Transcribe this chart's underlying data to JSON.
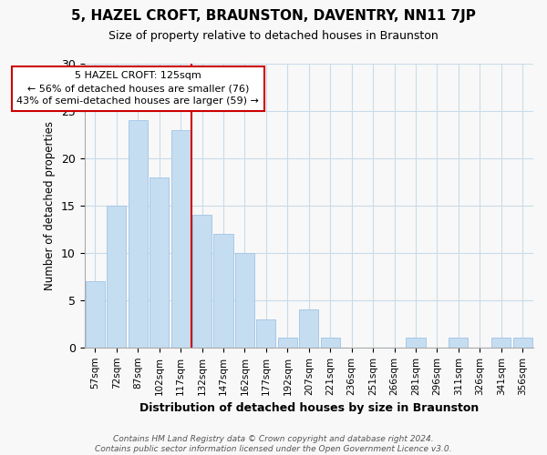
{
  "title": "5, HAZEL CROFT, BRAUNSTON, DAVENTRY, NN11 7JP",
  "subtitle": "Size of property relative to detached houses in Braunston",
  "xlabel": "Distribution of detached houses by size in Braunston",
  "ylabel": "Number of detached properties",
  "categories": [
    "57sqm",
    "72sqm",
    "87sqm",
    "102sqm",
    "117sqm",
    "132sqm",
    "147sqm",
    "162sqm",
    "177sqm",
    "192sqm",
    "207sqm",
    "221sqm",
    "236sqm",
    "251sqm",
    "266sqm",
    "281sqm",
    "296sqm",
    "311sqm",
    "326sqm",
    "341sqm",
    "356sqm"
  ],
  "values": [
    7,
    15,
    24,
    18,
    23,
    14,
    12,
    10,
    3,
    1,
    4,
    1,
    0,
    0,
    0,
    1,
    0,
    1,
    0,
    1,
    1
  ],
  "bar_color": "#c5ddf0",
  "bar_edge_color": "#a8c8e8",
  "vline_x_index": 4.5,
  "vline_color": "#cc0000",
  "annotation_line1": "5 HAZEL CROFT: 125sqm",
  "annotation_line2": "← 56% of detached houses are smaller (76)",
  "annotation_line3": "43% of semi-detached houses are larger (59) →",
  "annotation_box_color": "#ffffff",
  "annotation_box_edge": "#cc0000",
  "ylim": [
    0,
    30
  ],
  "yticks": [
    0,
    5,
    10,
    15,
    20,
    25,
    30
  ],
  "footer_line1": "Contains HM Land Registry data © Crown copyright and database right 2024.",
  "footer_line2": "Contains public sector information licensed under the Open Government Licence v3.0.",
  "background_color": "#f8f8f8",
  "grid_color": "#c8dcea"
}
